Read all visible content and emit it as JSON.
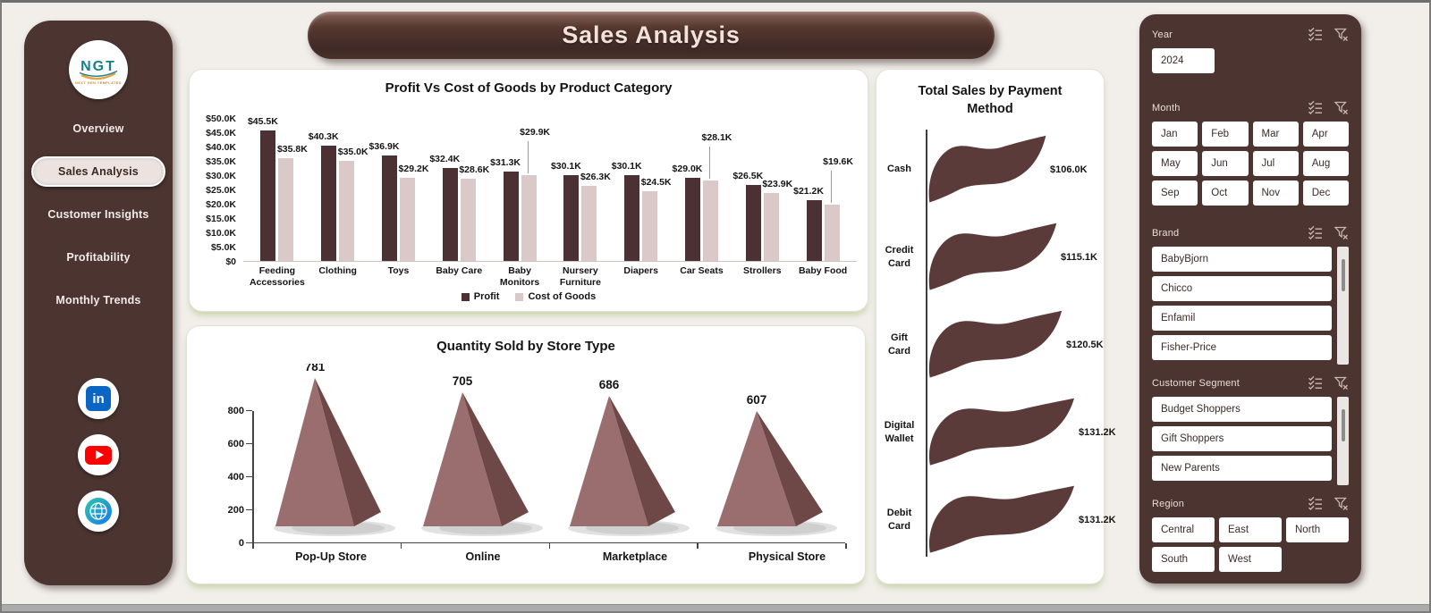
{
  "banner_title": "Sales Analysis",
  "sidebar": {
    "logo_text": "NGT",
    "logo_subtext": "NEXT GEN TEMPLATES",
    "nav": [
      {
        "label": "Overview",
        "active": false
      },
      {
        "label": "Sales Analysis",
        "active": true
      },
      {
        "label": "Customer Insights",
        "active": false
      },
      {
        "label": "Profitability",
        "active": false
      },
      {
        "label": "Monthly Trends",
        "active": false
      }
    ],
    "social": [
      "linkedin",
      "youtube",
      "website"
    ]
  },
  "colors": {
    "profit_bar": "#4b3134",
    "cost_bar": "#dbc9c9",
    "pyramid_front": "#9a6e6e",
    "pyramid_side": "#6e4747",
    "wave": "#5a3b39",
    "panel_bg": "#4c3531",
    "accent_green_shadow": "#a8c37d"
  },
  "chart_data": [
    {
      "type": "bar",
      "title": "Profit Vs Cost of Goods by Product Category",
      "categories": [
        "Feeding Accessories",
        "Clothing",
        "Toys",
        "Baby Care",
        "Baby Monitors",
        "Nursery Furniture",
        "Diapers",
        "Car Seats",
        "Strollers",
        "Baby Food"
      ],
      "series": [
        {
          "name": "Profit",
          "color": "#4b3134",
          "values": [
            45.5,
            40.3,
            36.9,
            32.4,
            31.3,
            30.1,
            30.1,
            29.0,
            26.5,
            21.2
          ],
          "labels": [
            "$45.5K",
            "$40.3K",
            "$36.9K",
            "$32.4K",
            "$31.3K",
            "$30.1K",
            "$30.1K",
            "$29.0K",
            "$26.5K",
            "$21.2K"
          ]
        },
        {
          "name": "Cost of Goods",
          "color": "#dbc9c9",
          "values": [
            35.8,
            35.0,
            29.2,
            28.6,
            29.9,
            26.3,
            24.5,
            28.1,
            23.9,
            19.6
          ],
          "labels": [
            "$35.8K",
            "$35.0K",
            "$29.2K",
            "$28.6K",
            "$29.9K",
            "$26.3K",
            "$24.5K",
            "$28.1K",
            "$23.9K",
            "$19.6K"
          ]
        }
      ],
      "ylim": [
        0,
        50
      ],
      "ytick_labels": [
        "$0",
        "$5.0K",
        "$10.0K",
        "$15.0K",
        "$20.0K",
        "$25.0K",
        "$30.0K",
        "$35.0K",
        "$40.0K",
        "$45.0K",
        "$50.0K"
      ],
      "raised_cost_label_indexes": [
        4,
        7,
        9
      ],
      "legend_position": "bottom",
      "grid": false
    },
    {
      "type": "bar",
      "variant": "pyramid-3d",
      "title": "Quantity Sold by Store Type",
      "categories": [
        "Pop-Up Store",
        "Online",
        "Marketplace",
        "Physical Store"
      ],
      "values": [
        781,
        705,
        686,
        607
      ],
      "ylim": [
        0,
        800
      ],
      "ytick_labels": [
        "0",
        "200",
        "400",
        "600",
        "800"
      ],
      "grid": false
    },
    {
      "type": "bar",
      "variant": "horizontal-wave",
      "title": "Total Sales by Payment Method",
      "categories": [
        "Cash",
        "Credit Card",
        "Gift Card",
        "Digital Wallet",
        "Debit Card"
      ],
      "values": [
        106.0,
        115.1,
        120.5,
        131.2,
        131.2
      ],
      "labels": [
        "$106.0K",
        "$115.1K",
        "$120.5K",
        "$131.2K",
        "$131.2K"
      ]
    }
  ],
  "filters": {
    "year": {
      "label": "Year",
      "values": [
        "2024"
      ]
    },
    "month": {
      "label": "Month",
      "values": [
        "Jan",
        "Feb",
        "Mar",
        "Apr",
        "May",
        "Jun",
        "Jul",
        "Aug",
        "Sep",
        "Oct",
        "Nov",
        "Dec"
      ]
    },
    "brand": {
      "label": "Brand",
      "values": [
        "BabyBjorn",
        "Chicco",
        "Enfamil",
        "Fisher-Price"
      ]
    },
    "customer_segment": {
      "label": "Customer Segment",
      "values": [
        "Budget Shoppers",
        "Gift Shoppers",
        "New Parents"
      ]
    },
    "region": {
      "label": "Region",
      "values": [
        "Central",
        "East",
        "North",
        "South",
        "West"
      ]
    }
  }
}
